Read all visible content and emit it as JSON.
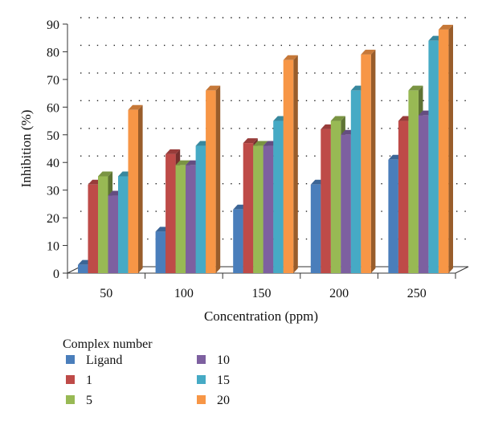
{
  "chart_data": {
    "type": "bar",
    "style": "3d-clustered",
    "xlabel": "Concentration (ppm)",
    "ylabel": "Inhibition (%)",
    "ylim": [
      0,
      90
    ],
    "yticks": [
      0,
      10,
      20,
      30,
      40,
      50,
      60,
      70,
      80,
      90
    ],
    "grid": "dotted horizontal",
    "categories": [
      "50",
      "100",
      "150",
      "200",
      "250"
    ],
    "legend": {
      "title": "Complex number",
      "placement": "bottom-left"
    },
    "series": [
      {
        "name": "Ligand",
        "color": "#4a7ebb",
        "values": [
          3,
          15,
          23,
          32,
          41
        ]
      },
      {
        "name": "1",
        "color": "#be4b48",
        "values": [
          32,
          43,
          47,
          52,
          55
        ]
      },
      {
        "name": "5",
        "color": "#98b954",
        "values": [
          35,
          39,
          46,
          55,
          66
        ]
      },
      {
        "name": "10",
        "color": "#7d60a0",
        "values": [
          28,
          39,
          46,
          50,
          57
        ]
      },
      {
        "name": "15",
        "color": "#46aac5",
        "values": [
          35,
          46,
          55,
          66,
          84
        ]
      },
      {
        "name": "20",
        "color": "#f79646",
        "values": [
          59,
          66,
          77,
          79,
          88
        ]
      }
    ]
  }
}
